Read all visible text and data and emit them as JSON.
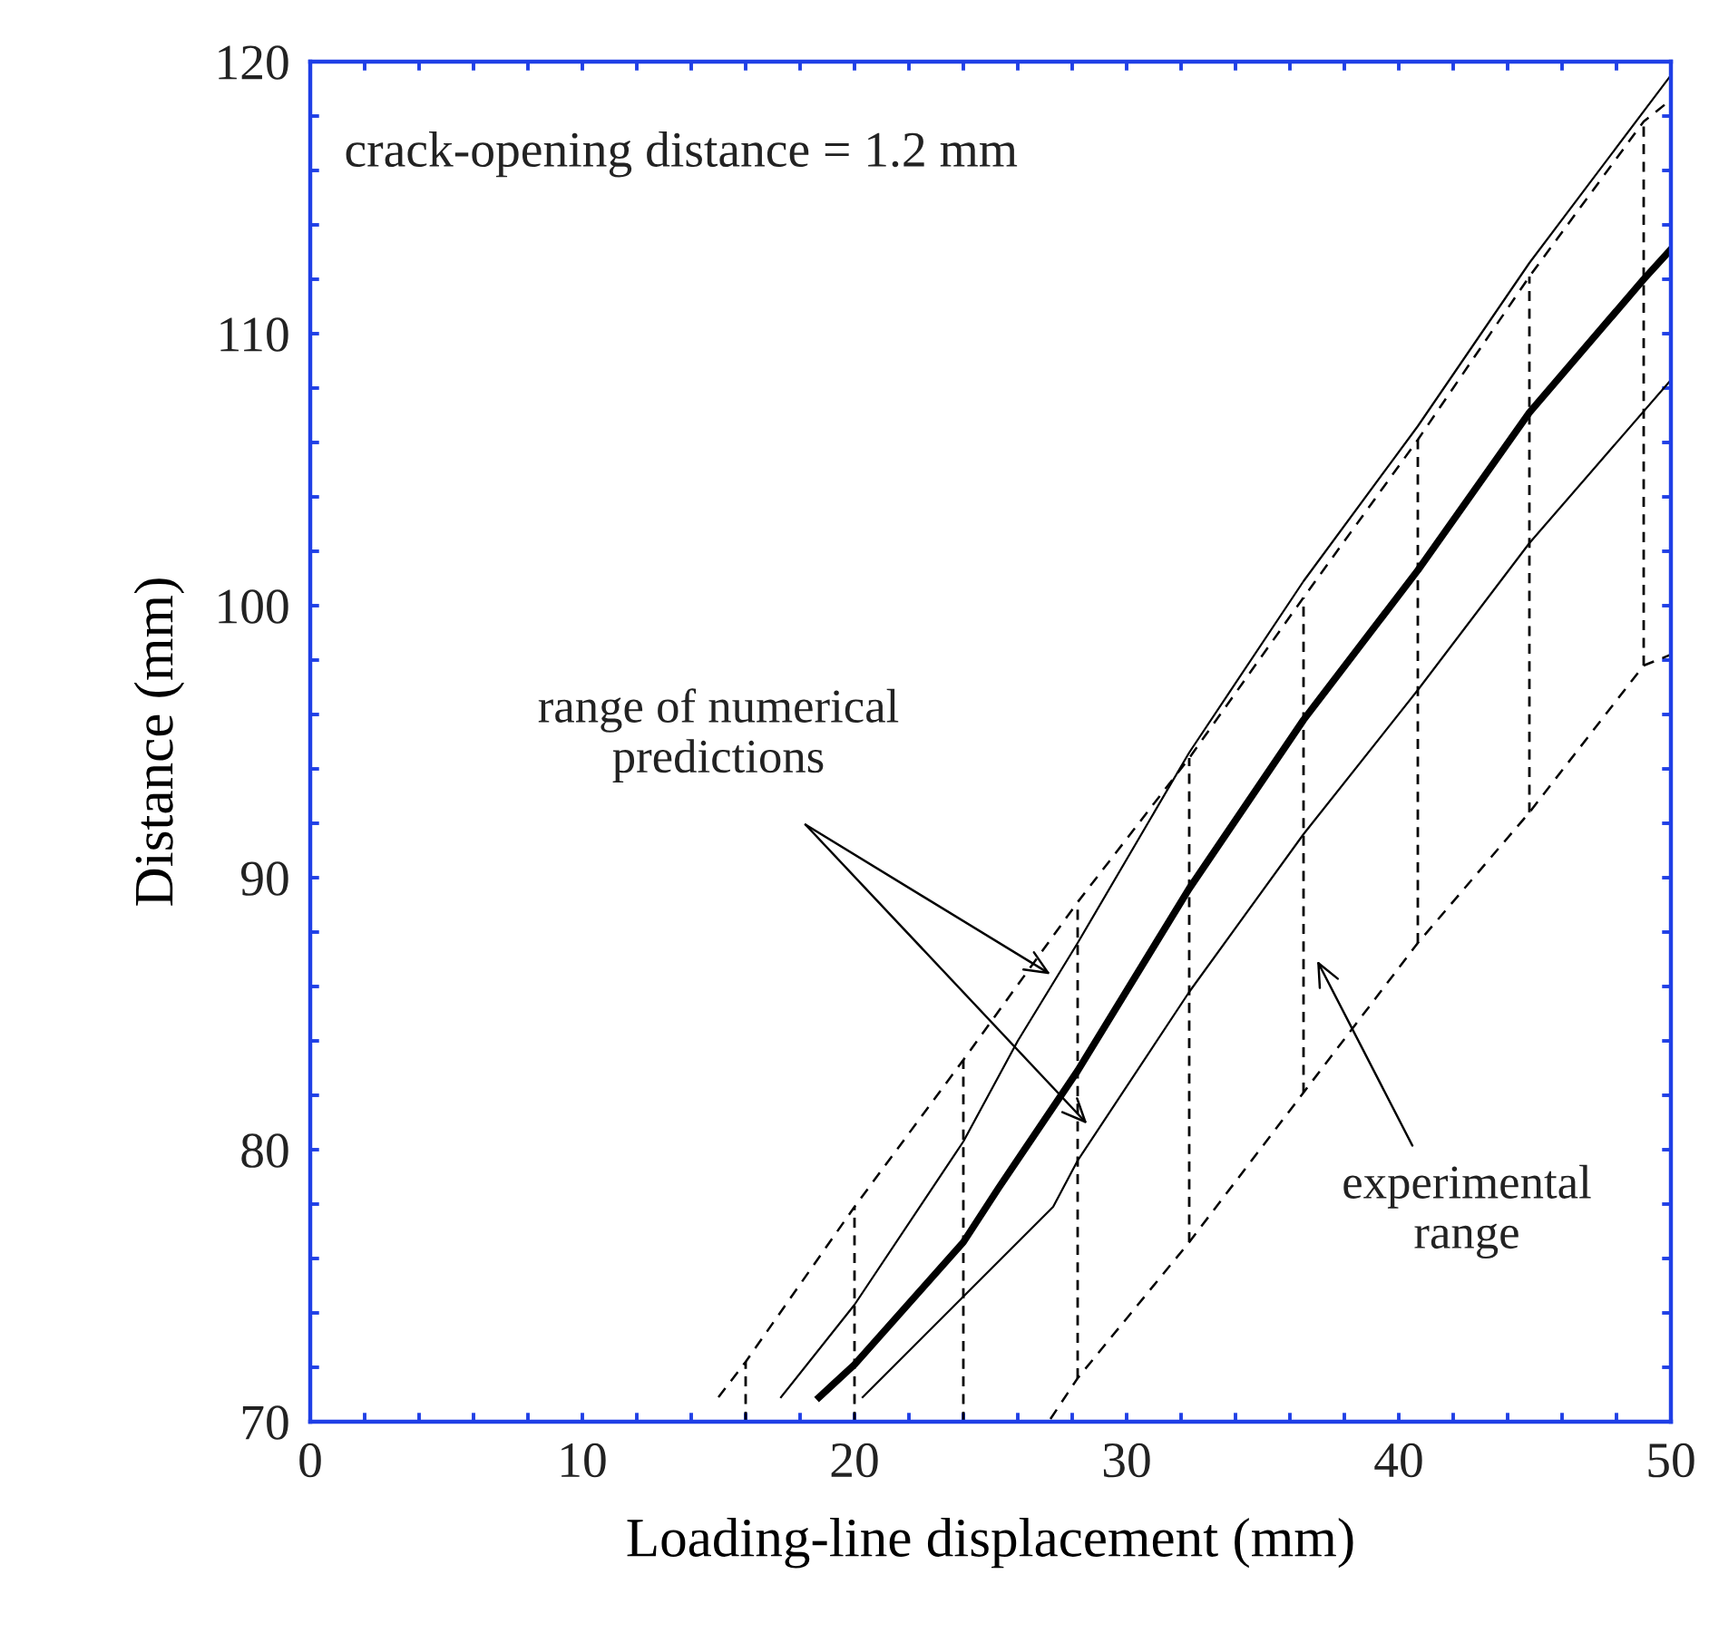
{
  "chart_data": {
    "type": "line",
    "xlabel": "Loading-line displacement (mm)",
    "ylabel": "Distance (mm)",
    "xlim": [
      0,
      50
    ],
    "ylim": [
      70,
      120
    ],
    "xticks": [
      0,
      {
        "value": 2,
        "label": null
      },
      {
        "value": 4,
        "label": null
      },
      {
        "value": 6,
        "label": null
      },
      {
        "value": 8,
        "label": null
      },
      10,
      {
        "value": 12,
        "label": null
      },
      {
        "value": 14,
        "label": null
      },
      {
        "value": 16,
        "label": null
      },
      {
        "value": 18,
        "label": null
      },
      20,
      {
        "value": 22,
        "label": null
      },
      {
        "value": 24,
        "label": null
      },
      {
        "value": 26,
        "label": null
      },
      {
        "value": 28,
        "label": null
      },
      30,
      {
        "value": 32,
        "label": null
      },
      {
        "value": 34,
        "label": null
      },
      {
        "value": 36,
        "label": null
      },
      {
        "value": 38,
        "label": null
      },
      40,
      {
        "value": 42,
        "label": null
      },
      {
        "value": 44,
        "label": null
      },
      {
        "value": 46,
        "label": null
      },
      {
        "value": 48,
        "label": null
      },
      50
    ],
    "yticks": [
      70,
      {
        "value": 72,
        "label": null
      },
      {
        "value": 74,
        "label": null
      },
      {
        "value": 76,
        "label": null
      },
      {
        "value": 78,
        "label": null
      },
      80,
      {
        "value": 82,
        "label": null
      },
      {
        "value": 84,
        "label": null
      },
      {
        "value": 86,
        "label": null
      },
      {
        "value": 88,
        "label": null
      },
      90,
      {
        "value": 92,
        "label": null
      },
      {
        "value": 94,
        "label": null
      },
      {
        "value": 96,
        "label": null
      },
      {
        "value": 98,
        "label": null
      },
      100,
      {
        "value": 102,
        "label": null
      },
      {
        "value": 104,
        "label": null
      },
      {
        "value": 106,
        "label": null
      },
      {
        "value": 108,
        "label": null
      },
      110,
      {
        "value": 112,
        "label": null
      },
      {
        "value": 114,
        "label": null
      },
      {
        "value": 116,
        "label": null
      },
      {
        "value": 118,
        "label": null
      },
      120
    ],
    "grid": false,
    "legend": false,
    "marker": "none",
    "series": [
      {
        "color": "#000000",
        "line_style": "solid",
        "x": [
          17.3,
          20,
          24,
          26,
          28.2,
          32.3,
          36.5,
          40.7,
          44.8,
          50
        ],
        "values": [
          70.9,
          74.3,
          80.3,
          84,
          87.6,
          94.6,
          100.9,
          106.6,
          112.6,
          119.5
        ]
      },
      {
        "color": "#000000",
        "line_style": "solid",
        "x": [
          18.7,
          20,
          24,
          25.3,
          28.2,
          32.3,
          36.5,
          40.7,
          44.8,
          49,
          50
        ],
        "values": [
          70.9,
          72.1,
          76.6,
          78.6,
          82.9,
          89.6,
          95.8,
          101.3,
          107.1,
          112,
          113.1
        ]
      },
      {
        "color": "#000000",
        "line_style": "solid",
        "x": [
          20.3,
          24,
          27.3,
          28.2,
          32.3,
          36.5,
          40.7,
          44.8,
          50
        ],
        "values": [
          70.9,
          74.6,
          77.9,
          79.6,
          85.8,
          91.6,
          96.9,
          102.3,
          108.3
        ]
      },
      {
        "color": "#000000",
        "line_style": "dashed",
        "x": [
          15,
          16,
          20,
          24,
          28.2,
          32.3,
          36.5,
          40.7,
          44.8,
          49,
          50
        ],
        "values": [
          70.9,
          72.2,
          77.9,
          83.3,
          89.1,
          94.4,
          100.3,
          106.1,
          112.1,
          117.8,
          118.6
        ],
        "errors": [
          null,
          [
            70,
            72.2
          ],
          [
            70,
            77.9
          ],
          [
            70,
            83.3
          ],
          [
            71.6,
            89.1
          ],
          [
            76.6,
            94.4
          ],
          [
            82.1,
            100.3
          ],
          [
            87.6,
            106.1
          ],
          [
            92.4,
            112.1
          ],
          [
            97.8,
            117.8
          ],
          null
        ]
      },
      {
        "color": "#000000",
        "line_style": "dashed",
        "x": [
          27.2,
          28.2,
          32.3,
          36.5,
          40.7,
          44.8,
          49,
          50
        ],
        "values": [
          70.1,
          71.6,
          76.6,
          82.1,
          87.6,
          92.4,
          97.8,
          98.2
        ]
      }
    ],
    "annotations": [
      "crack-opening distance = 1.2 mm",
      "range of numerical\npredictions",
      "experimental\nrange"
    ]
  }
}
